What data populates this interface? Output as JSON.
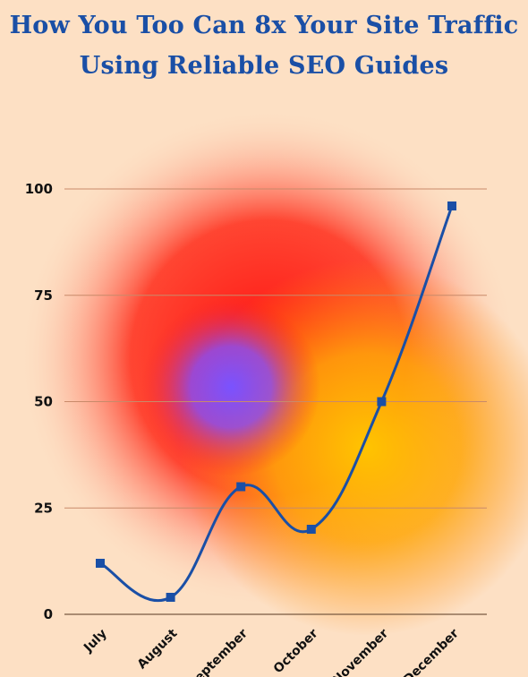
{
  "chart_data": {
    "type": "line",
    "title_lines": [
      "How You Too Can 8x Your Site Traffic",
      "Using Reliable SEO Guides"
    ],
    "categories": [
      "July",
      "August",
      "September",
      "October",
      "November",
      "December"
    ],
    "series": [
      {
        "values": [
          12,
          4,
          30,
          20,
          50,
          96
        ]
      }
    ],
    "y_ticks": [
      "0",
      "25",
      "50",
      "75",
      "100"
    ],
    "ylim": [
      0,
      100
    ],
    "grid": true,
    "line_color": "#1a4fa6",
    "title_color": "#1a4fa6",
    "background_color": "#fde0c4",
    "xlabel": "",
    "ylabel": ""
  }
}
